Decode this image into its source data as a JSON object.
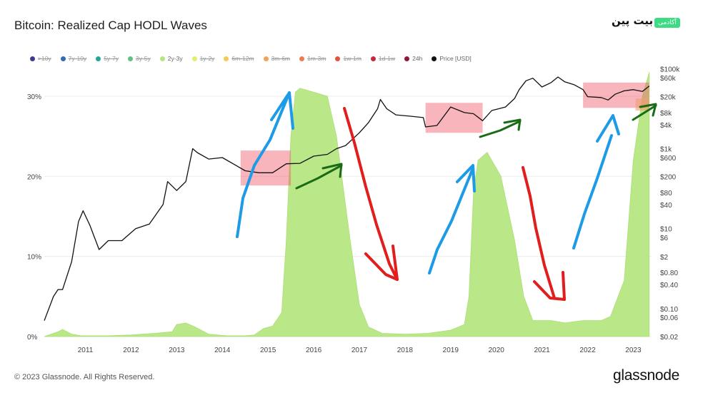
{
  "header": {
    "title": "Bitcoin: Realized Cap HODL Waves",
    "brand_text": "بیت پین",
    "brand_badge": "آکادمی"
  },
  "legend": [
    {
      "label": ">10y",
      "color": "#3f3a8a",
      "active": false
    },
    {
      "label": "7y-10y",
      "color": "#2f6db4",
      "active": false
    },
    {
      "label": "5y-7y",
      "color": "#23a69a",
      "active": false
    },
    {
      "label": "3y-5y",
      "color": "#5fc27f",
      "active": false
    },
    {
      "label": "2y-3y",
      "color": "#b5e67e",
      "active": true
    },
    {
      "label": "1y-2y",
      "color": "#e4ee6a",
      "active": false
    },
    {
      "label": "6m-12m",
      "color": "#f4c95a",
      "active": false
    },
    {
      "label": "3m-6m",
      "color": "#f2a35b",
      "active": false
    },
    {
      "label": "1m-3m",
      "color": "#ef7b52",
      "active": false
    },
    {
      "label": "1w-1m",
      "color": "#e0543d",
      "active": false
    },
    {
      "label": "1d-1w",
      "color": "#c7283a",
      "active": false
    },
    {
      "label": "24h",
      "color": "#8e1838",
      "active": true
    },
    {
      "label": "Price [USD]",
      "color": "#111111",
      "active": true
    }
  ],
  "chart_data": {
    "type": "area",
    "title": "Bitcoin: Realized Cap HODL Waves",
    "x_ticks": [
      "2011",
      "2012",
      "2013",
      "2014",
      "2015",
      "2016",
      "2017",
      "2018",
      "2019",
      "2020",
      "2021",
      "2022",
      "2023"
    ],
    "y_left_ticks": [
      "0%",
      "10%",
      "20%",
      "30%"
    ],
    "y_left_range": [
      0,
      0.34
    ],
    "y_right_ticks": [
      "$0.02",
      "$0.06",
      "$0.10",
      "$0.40",
      "$0.80",
      "$2",
      "$6",
      "$10",
      "$40",
      "$80",
      "$200",
      "$600",
      "$1k",
      "$4k",
      "$8k",
      "$20k",
      "$60k",
      "$100k"
    ],
    "y_right_scale": "log",
    "y_right_range": [
      0.02,
      130000
    ],
    "series": [
      {
        "name": "2y-3y",
        "color": "#b5e67e",
        "x": [
          2010.6,
          2010.9,
          2011.0,
          2011.2,
          2011.4,
          2011.7,
          2012.0,
          2012.5,
          2013.0,
          2013.4,
          2013.5,
          2013.7,
          2013.9,
          2014.2,
          2014.6,
          2015.0,
          2015.2,
          2015.4,
          2015.6,
          2015.8,
          2015.9,
          2016.0,
          2016.1,
          2016.2,
          2016.5,
          2016.8,
          2017.0,
          2017.3,
          2017.5,
          2017.7,
          2018.0,
          2018.5,
          2019.0,
          2019.5,
          2019.8,
          2019.9,
          2020.0,
          2020.1,
          2020.3,
          2020.6,
          2020.9,
          2021.1,
          2021.3,
          2021.7,
          2022.0,
          2022.4,
          2022.8,
          2023.0,
          2023.3,
          2023.5,
          2023.7,
          2023.85
        ],
        "y": [
          0.0,
          0.006,
          0.009,
          0.003,
          0.001,
          0.001,
          0.001,
          0.002,
          0.004,
          0.006,
          0.015,
          0.017,
          0.012,
          0.003,
          0.001,
          0.001,
          0.002,
          0.01,
          0.013,
          0.03,
          0.12,
          0.25,
          0.305,
          0.31,
          0.305,
          0.3,
          0.25,
          0.12,
          0.04,
          0.012,
          0.004,
          0.003,
          0.004,
          0.008,
          0.015,
          0.05,
          0.18,
          0.22,
          0.23,
          0.2,
          0.12,
          0.05,
          0.02,
          0.02,
          0.017,
          0.02,
          0.02,
          0.025,
          0.07,
          0.22,
          0.3,
          0.33
        ]
      },
      {
        "name": "Price [USD]",
        "color": "#111111",
        "x": [
          2010.6,
          2010.8,
          2010.9,
          2011.0,
          2011.2,
          2011.35,
          2011.45,
          2011.6,
          2011.8,
          2012.0,
          2012.3,
          2012.6,
          2012.9,
          2013.2,
          2013.3,
          2013.5,
          2013.7,
          2013.85,
          2013.95,
          2014.2,
          2014.5,
          2014.8,
          2015.0,
          2015.3,
          2015.6,
          2015.9,
          2016.2,
          2016.5,
          2016.8,
          2017.0,
          2017.2,
          2017.5,
          2017.7,
          2017.9,
          2017.96,
          2018.1,
          2018.3,
          2018.6,
          2018.9,
          2018.95,
          2019.2,
          2019.5,
          2019.8,
          2020.0,
          2020.2,
          2020.4,
          2020.7,
          2020.9,
          2021.0,
          2021.15,
          2021.3,
          2021.5,
          2021.7,
          2021.85,
          2022.0,
          2022.2,
          2022.4,
          2022.5,
          2022.8,
          2022.95,
          2023.1,
          2023.3,
          2023.5,
          2023.7,
          2023.85
        ],
        "y": [
          0.05,
          0.2,
          0.3,
          0.3,
          1.5,
          15,
          28,
          12,
          3,
          5,
          5,
          10,
          13,
          40,
          150,
          90,
          150,
          1000,
          800,
          550,
          600,
          380,
          280,
          250,
          250,
          420,
          430,
          650,
          720,
          1000,
          1200,
          2500,
          4500,
          10000,
          17000,
          10000,
          7000,
          6500,
          6000,
          3500,
          3800,
          11000,
          8000,
          7500,
          5000,
          9000,
          11000,
          18000,
          30000,
          50000,
          58000,
          35000,
          45000,
          62000,
          47000,
          40000,
          30000,
          20000,
          19000,
          16500,
          23000,
          28000,
          30000,
          27000,
          37000
        ]
      }
    ],
    "annotations": {
      "highlight_boxes": 4,
      "arrow_colors": {
        "up": "#1e9be6",
        "down": "#e11d1d",
        "flat": "#196b16"
      }
    }
  },
  "footer": {
    "copyright": "© 2023 Glassnode. All Rights Reserved.",
    "logo": "glassnode"
  }
}
